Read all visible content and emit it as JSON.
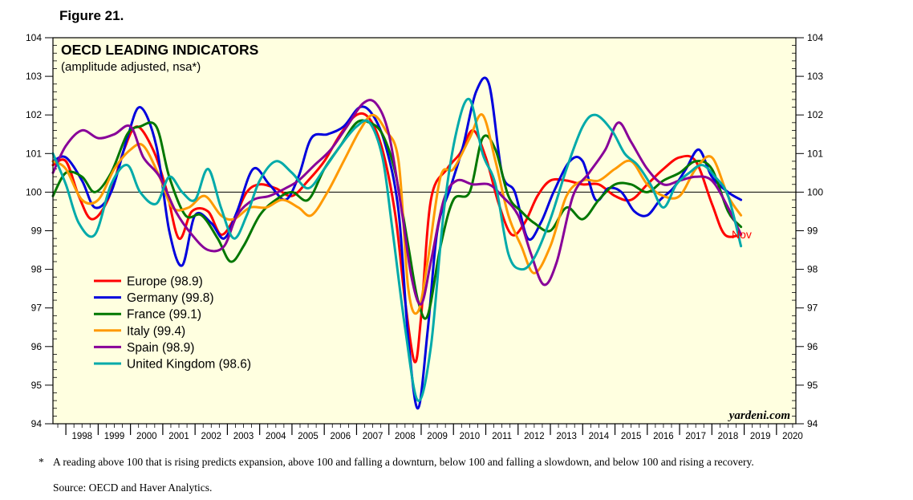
{
  "figure_label": "Figure 21.",
  "footnote_marker": "*",
  "footnote": "A reading above 100 that is rising predicts expansion, above 100 and falling a downturn, below 100 and falling a slowdown, and below 100 and rising a recovery.",
  "source": "Source: OECD and Haver Analytics.",
  "chart_data": {
    "type": "line",
    "title": "OECD LEADING INDICATORS",
    "subtitle": "(amplitude adjusted, nsa*)",
    "watermark": "yardeni.com",
    "end_label": "Nov",
    "reference_line": 100,
    "ylim": [
      94,
      104
    ],
    "y_ticks": [
      94,
      95,
      96,
      97,
      98,
      99,
      100,
      101,
      102,
      103,
      104
    ],
    "xlim": [
      1997.6,
      2020.6
    ],
    "x_tick_labels": [
      "1998",
      "1999",
      "2000",
      "2001",
      "2002",
      "2003",
      "2004",
      "2005",
      "2006",
      "2007",
      "2008",
      "2009",
      "2010",
      "2011",
      "2012",
      "2013",
      "2014",
      "2015",
      "2016",
      "2017",
      "2018",
      "2019",
      "2020"
    ],
    "grid": false,
    "legend_position": "left-middle",
    "plot_background": "#ffffe0",
    "series": [
      {
        "name": "Europe",
        "legend": "Europe (98.9)",
        "color": "#ff0000",
        "x": [
          1997.6,
          1998.0,
          1998.4,
          1998.8,
          1999.3,
          1999.8,
          2000.2,
          2000.7,
          2001.1,
          2001.5,
          2001.9,
          2002.4,
          2002.8,
          2003.2,
          2003.6,
          2004.0,
          2004.5,
          2005.0,
          2005.5,
          2006.0,
          2006.5,
          2007.0,
          2007.4,
          2007.8,
          2008.2,
          2008.5,
          2008.8,
          2009.0,
          2009.3,
          2009.8,
          2010.2,
          2010.6,
          2011.0,
          2011.4,
          2011.8,
          2012.2,
          2012.6,
          2013.0,
          2013.5,
          2014.0,
          2014.5,
          2015.0,
          2015.5,
          2016.0,
          2016.5,
          2017.0,
          2017.5,
          2018.0,
          2018.4,
          2018.9
        ],
        "y": [
          100.7,
          100.8,
          99.9,
          99.3,
          99.8,
          101.1,
          101.7,
          101.1,
          100.1,
          98.8,
          99.5,
          99.5,
          98.9,
          99.3,
          100.0,
          100.2,
          100.1,
          99.9,
          100.3,
          100.8,
          101.5,
          102.0,
          101.9,
          101.1,
          99.4,
          97.2,
          95.6,
          96.8,
          99.8,
          100.6,
          101.0,
          101.6,
          100.9,
          99.7,
          98.9,
          99.2,
          99.9,
          100.3,
          100.3,
          100.2,
          100.2,
          99.9,
          99.8,
          100.2,
          100.6,
          100.9,
          100.8,
          99.7,
          98.9,
          98.9
        ]
      },
      {
        "name": "Germany",
        "legend": "Germany (99.8)",
        "color": "#0000dd",
        "x": [
          1997.6,
          1998.0,
          1998.5,
          1998.9,
          1999.4,
          1999.9,
          2000.3,
          2000.8,
          2001.2,
          2001.6,
          2002.0,
          2002.5,
          2002.9,
          2003.3,
          2003.8,
          2004.3,
          2004.8,
          2005.2,
          2005.6,
          2006.1,
          2006.6,
          2007.1,
          2007.5,
          2007.9,
          2008.3,
          2008.6,
          2008.9,
          2009.2,
          2009.5,
          2009.9,
          2010.3,
          2010.7,
          2011.1,
          2011.5,
          2011.9,
          2012.3,
          2012.7,
          2013.1,
          2013.6,
          2014.0,
          2014.4,
          2014.8,
          2015.2,
          2015.6,
          2016.0,
          2016.4,
          2016.8,
          2017.2,
          2017.6,
          2018.0,
          2018.5,
          2018.9
        ],
        "y": [
          100.8,
          100.9,
          100.3,
          99.6,
          100.0,
          101.4,
          102.2,
          101.2,
          99.0,
          98.1,
          99.4,
          99.2,
          98.8,
          99.5,
          100.6,
          100.2,
          99.8,
          100.4,
          101.4,
          101.5,
          101.7,
          102.2,
          102.0,
          101.2,
          99.5,
          96.2,
          94.4,
          96.4,
          99.0,
          100.1,
          101.2,
          102.6,
          102.8,
          100.5,
          100.0,
          98.8,
          99.2,
          100.0,
          100.8,
          100.8,
          99.8,
          100.1,
          100.0,
          99.5,
          99.4,
          99.8,
          100.1,
          100.6,
          101.1,
          100.4,
          100.0,
          99.8
        ]
      },
      {
        "name": "France",
        "legend": "France (99.1)",
        "color": "#007700",
        "x": [
          1997.6,
          1998.0,
          1998.5,
          1998.9,
          1999.4,
          1999.9,
          2000.3,
          2000.8,
          2001.2,
          2001.7,
          2002.2,
          2002.7,
          2003.1,
          2003.5,
          2004.0,
          2004.5,
          2005.0,
          2005.5,
          2006.0,
          2006.5,
          2007.0,
          2007.4,
          2007.8,
          2008.2,
          2008.6,
          2008.9,
          2009.2,
          2009.6,
          2010.0,
          2010.5,
          2010.9,
          2011.3,
          2011.7,
          2012.1,
          2012.5,
          2013.0,
          2013.5,
          2014.0,
          2014.5,
          2015.0,
          2015.5,
          2016.0,
          2016.5,
          2017.0,
          2017.5,
          2018.0,
          2018.5,
          2018.9
        ],
        "y": [
          99.9,
          100.5,
          100.4,
          100.0,
          100.5,
          101.5,
          101.7,
          101.7,
          100.4,
          99.4,
          99.4,
          98.8,
          98.2,
          98.6,
          99.4,
          99.8,
          100.0,
          99.8,
          100.6,
          101.2,
          101.8,
          101.8,
          101.5,
          100.5,
          98.6,
          97.2,
          96.8,
          98.6,
          99.8,
          100.0,
          101.4,
          101.1,
          99.9,
          99.5,
          99.2,
          99.0,
          99.6,
          99.3,
          99.8,
          100.2,
          100.2,
          100.0,
          100.3,
          100.5,
          100.8,
          100.6,
          99.5,
          99.1
        ]
      },
      {
        "name": "Italy",
        "legend": "Italy (99.4)",
        "color": "#ff9900",
        "x": [
          1997.6,
          1998.0,
          1998.5,
          1999.0,
          1999.5,
          2000.0,
          2000.4,
          2000.9,
          2001.3,
          2001.8,
          2002.3,
          2002.8,
          2003.2,
          2003.7,
          2004.2,
          2004.7,
          2005.2,
          2005.6,
          2006.1,
          2006.6,
          2007.1,
          2007.5,
          2007.9,
          2008.3,
          2008.6,
          2008.9,
          2009.2,
          2009.6,
          2010.0,
          2010.5,
          2010.9,
          2011.3,
          2011.7,
          2012.1,
          2012.5,
          2013.0,
          2013.5,
          2014.0,
          2014.5,
          2015.0,
          2015.5,
          2016.0,
          2016.5,
          2017.0,
          2017.5,
          2018.0,
          2018.5,
          2018.9
        ],
        "y": [
          100.8,
          100.6,
          99.8,
          99.8,
          100.6,
          101.1,
          101.2,
          100.4,
          99.6,
          99.6,
          99.9,
          99.4,
          99.3,
          99.6,
          99.6,
          99.8,
          99.6,
          99.4,
          100.0,
          100.8,
          101.6,
          102.0,
          101.6,
          100.8,
          97.5,
          96.9,
          98.2,
          100.4,
          100.6,
          101.4,
          102.0,
          100.8,
          99.4,
          98.6,
          97.9,
          98.6,
          99.9,
          100.3,
          100.3,
          100.6,
          100.8,
          100.2,
          99.9,
          99.9,
          100.6,
          100.9,
          99.9,
          99.4
        ]
      },
      {
        "name": "Spain",
        "legend": "Spain (98.9)",
        "color": "#880099",
        "x": [
          1997.6,
          1998.0,
          1998.5,
          1999.0,
          1999.5,
          2000.0,
          2000.4,
          2000.9,
          2001.4,
          2001.9,
          2002.4,
          2002.9,
          2003.3,
          2003.8,
          2004.3,
          2004.8,
          2005.2,
          2005.7,
          2006.2,
          2006.7,
          2007.2,
          2007.6,
          2008.0,
          2008.4,
          2008.7,
          2009.0,
          2009.3,
          2009.7,
          2010.1,
          2010.6,
          2011.1,
          2011.5,
          2012.0,
          2012.4,
          2012.8,
          2013.2,
          2013.7,
          2014.2,
          2014.7,
          2015.1,
          2015.5,
          2016.0,
          2016.5,
          2017.0,
          2017.5,
          2018.0,
          2018.5,
          2018.9
        ],
        "y": [
          100.5,
          101.2,
          101.6,
          101.4,
          101.5,
          101.7,
          100.9,
          100.4,
          99.5,
          98.9,
          98.5,
          98.6,
          99.4,
          99.8,
          99.9,
          100.1,
          100.3,
          100.7,
          101.1,
          101.7,
          102.3,
          102.3,
          101.5,
          99.5,
          97.8,
          97.1,
          98.2,
          99.8,
          100.3,
          100.2,
          100.2,
          99.9,
          99.4,
          98.4,
          97.6,
          98.2,
          99.9,
          100.5,
          101.1,
          101.8,
          101.3,
          100.6,
          100.2,
          100.3,
          100.4,
          100.3,
          99.6,
          98.9
        ]
      },
      {
        "name": "United Kingdom",
        "legend": "United Kingdom (98.6)",
        "color": "#00aaaa",
        "x": [
          1997.6,
          1998.0,
          1998.4,
          1998.9,
          1999.4,
          1999.9,
          2000.3,
          2000.8,
          2001.2,
          2001.6,
          2002.0,
          2002.4,
          2002.8,
          2003.2,
          2003.6,
          2004.0,
          2004.5,
          2005.0,
          2005.5,
          2006.0,
          2006.5,
          2007.0,
          2007.4,
          2007.8,
          2008.1,
          2008.5,
          2008.9,
          2009.3,
          2009.7,
          2010.1,
          2010.5,
          2010.9,
          2011.3,
          2011.7,
          2012.1,
          2012.5,
          2013.0,
          2013.5,
          2014.0,
          2014.4,
          2014.9,
          2015.3,
          2015.7,
          2016.1,
          2016.5,
          2016.9,
          2017.3,
          2017.7,
          2018.1,
          2018.5,
          2018.9
        ],
        "y": [
          101.0,
          100.2,
          99.2,
          98.9,
          100.2,
          100.7,
          100.0,
          99.7,
          100.4,
          100.0,
          99.8,
          100.6,
          99.6,
          98.8,
          99.4,
          100.3,
          100.8,
          100.5,
          100.1,
          100.6,
          101.2,
          101.7,
          101.8,
          100.9,
          99.1,
          96.5,
          94.6,
          96.0,
          99.5,
          101.6,
          102.4,
          101.0,
          100.2,
          98.4,
          98.0,
          98.3,
          99.3,
          100.6,
          101.7,
          102.0,
          101.6,
          101.0,
          100.7,
          100.2,
          99.6,
          100.2,
          100.5,
          100.7,
          100.4,
          99.9,
          98.6
        ]
      }
    ]
  }
}
